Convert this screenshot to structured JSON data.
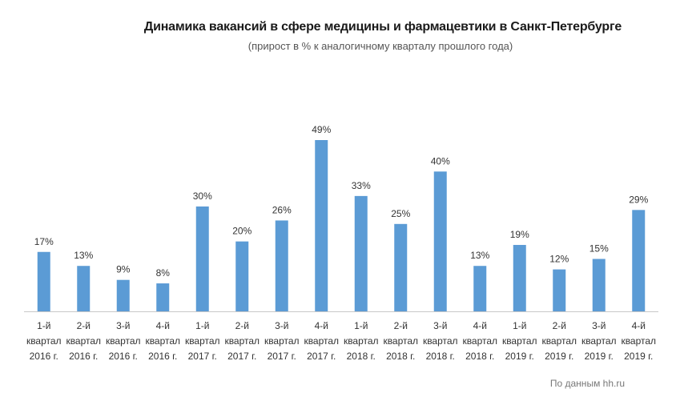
{
  "title": "Динамика вакансий в сфере медицины и фармацевтики в Санкт-Петербурге",
  "subtitle": "(прирост в % к аналогичному кварталу прошлого года)",
  "source": "По данным hh.ru",
  "colors": {
    "bar": "#5B9BD5",
    "axis": "#c8c8c8"
  },
  "chart_data": {
    "type": "bar",
    "title": "Динамика вакансий в сфере медицины и фармацевтики в Санкт-Петербурге",
    "subtitle": "(прирост в % к аналогичному кварталу прошлого года)",
    "categories": [
      [
        "1-й",
        "квартал",
        "2016 г."
      ],
      [
        "2-й",
        "квартал",
        "2016 г."
      ],
      [
        "3-й",
        "квартал",
        "2016 г."
      ],
      [
        "4-й",
        "квартал",
        "2016 г."
      ],
      [
        "1-й",
        "квартал",
        "2017 г."
      ],
      [
        "2-й",
        "квартал",
        "2017 г."
      ],
      [
        "3-й",
        "квартал",
        "2017 г."
      ],
      [
        "4-й",
        "квартал",
        "2017 г."
      ],
      [
        "1-й",
        "квартал",
        "2018 г."
      ],
      [
        "2-й",
        "квартал",
        "2018 г."
      ],
      [
        "3-й",
        "квартал",
        "2018 г."
      ],
      [
        "4-й",
        "квартал",
        "2018 г."
      ],
      [
        "1-й",
        "квартал",
        "2019 г."
      ],
      [
        "2-й",
        "квартал",
        "2019 г."
      ],
      [
        "3-й",
        "квартал",
        "2019 г."
      ],
      [
        "4-й",
        "квартал",
        "2019 г."
      ]
    ],
    "values": [
      17,
      13,
      9,
      8,
      30,
      20,
      26,
      49,
      33,
      25,
      40,
      13,
      19,
      12,
      15,
      29
    ],
    "value_labels": [
      "17%",
      "13%",
      "9%",
      "8%",
      "30%",
      "20%",
      "26%",
      "49%",
      "33%",
      "25%",
      "40%",
      "13%",
      "19%",
      "12%",
      "15%",
      "29%"
    ],
    "ylim": [
      0,
      49
    ],
    "grid": false,
    "legend": "none"
  }
}
